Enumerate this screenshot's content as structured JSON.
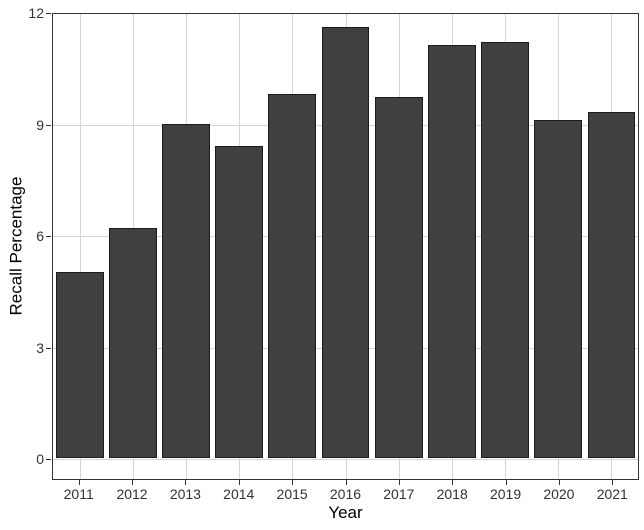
{
  "figure": {
    "background_color": "#ffffff"
  },
  "chart_data": {
    "type": "bar",
    "title": "",
    "xlabel": "Year",
    "ylabel": "Recall Percentage",
    "categories": [
      "2011",
      "2012",
      "2013",
      "2014",
      "2015",
      "2016",
      "2017",
      "2018",
      "2019",
      "2020",
      "2021"
    ],
    "values": [
      5.0,
      6.2,
      9.0,
      8.4,
      9.8,
      11.6,
      9.7,
      11.1,
      11.2,
      9.1,
      9.3
    ],
    "ylim": [
      0,
      12
    ],
    "yticks": [
      0,
      3,
      6,
      9,
      12
    ],
    "ytick_labels": [
      "0",
      "3",
      "6",
      "9",
      "12"
    ],
    "grid": true,
    "legend": "none",
    "bar_color": "#404040",
    "bar_border_color": "#1c1c1c",
    "grid_color": "#d4d4d4",
    "panel_border_color": "#333333",
    "tick_mark_color": "#333333",
    "tick_label_color": "#333333",
    "axis_title_color": "#000000"
  }
}
